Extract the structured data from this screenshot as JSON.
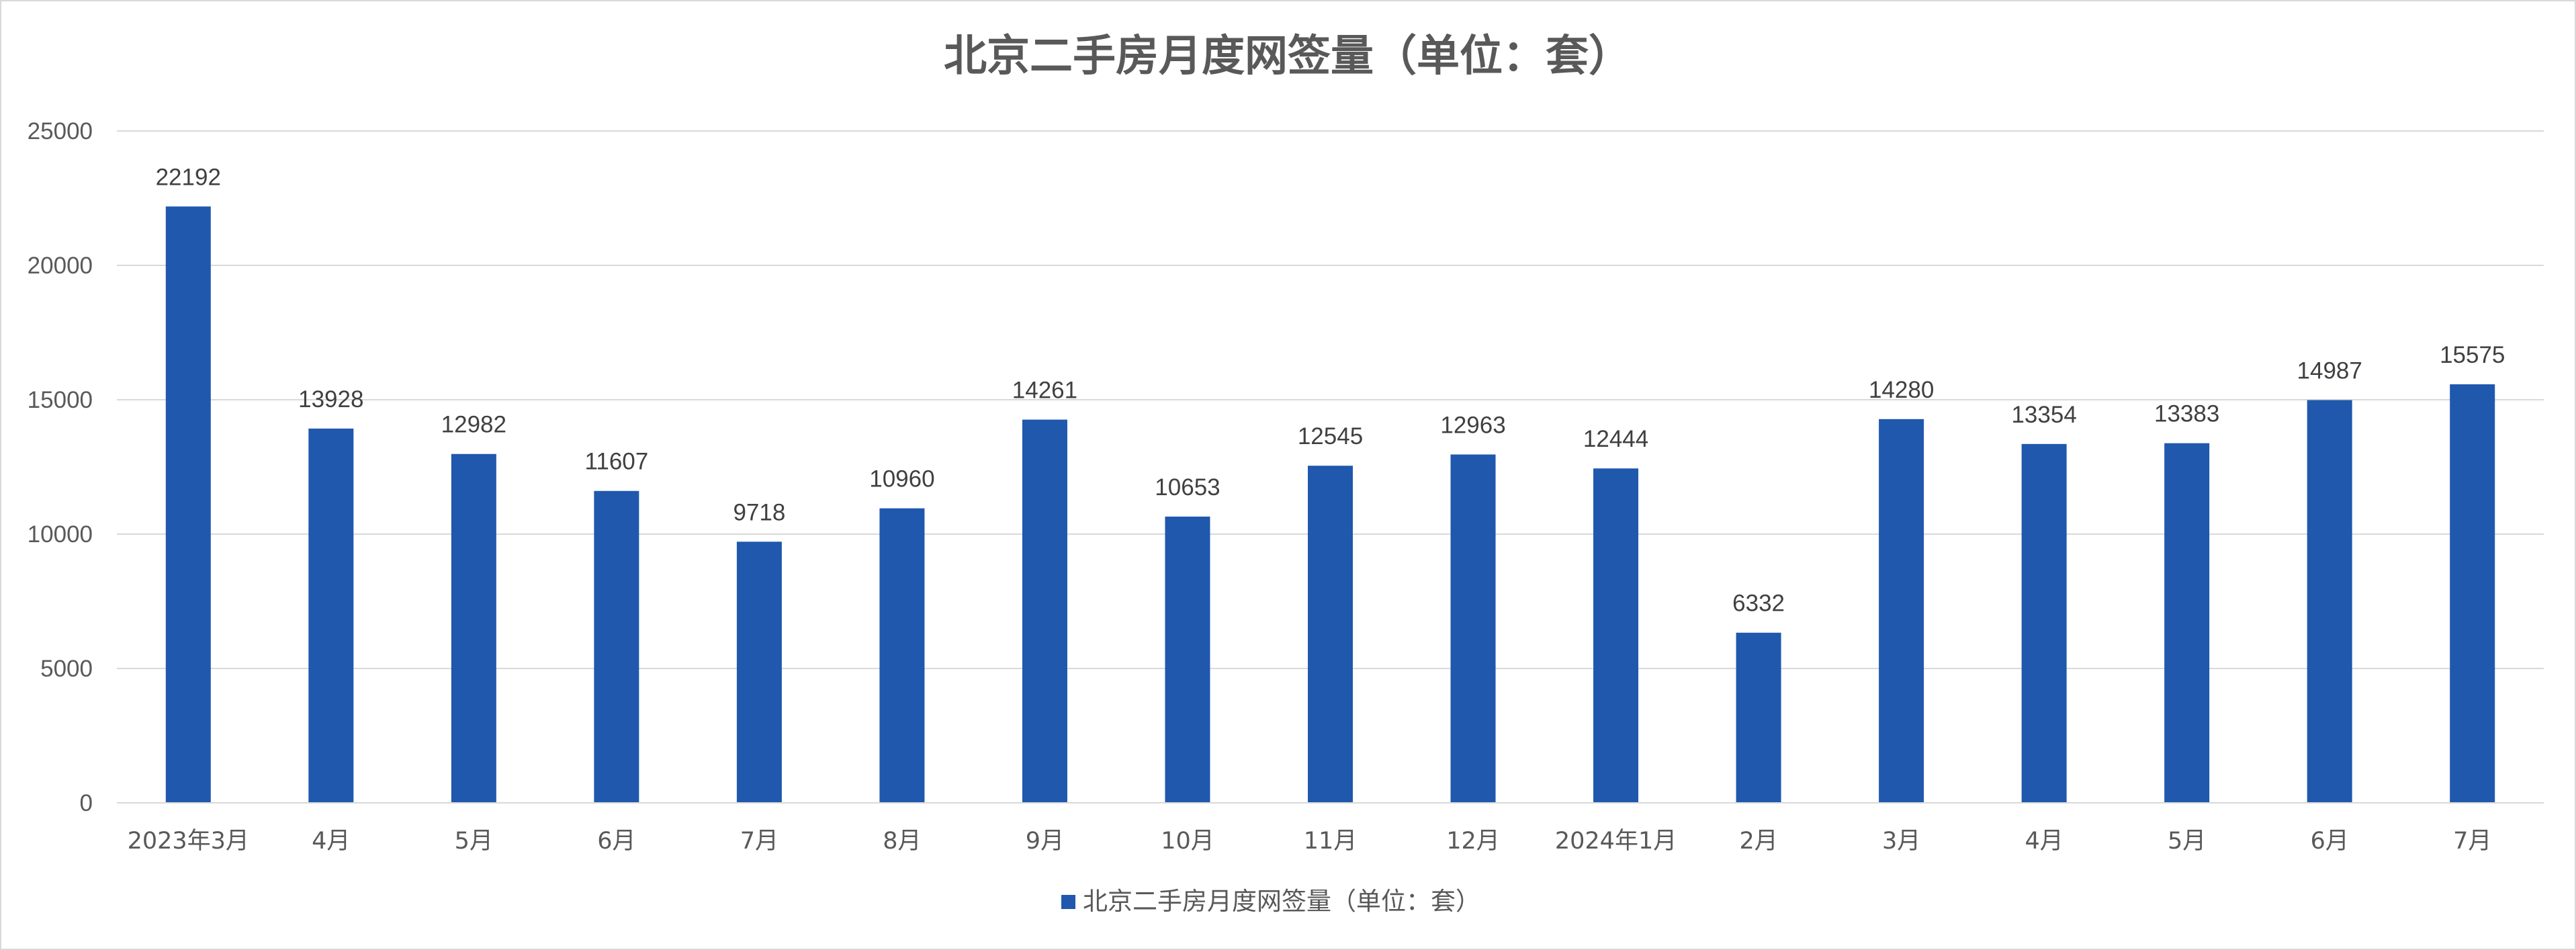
{
  "chart_data": {
    "type": "bar",
    "title": "北京二手房月度网签量（单位：套）",
    "categories": [
      "2023年3月",
      "4月",
      "5月",
      "6月",
      "7月",
      "8月",
      "9月",
      "10月",
      "11月",
      "12月",
      "2024年1月",
      "2月",
      "3月",
      "4月",
      "5月",
      "6月",
      "7月"
    ],
    "series": [
      {
        "name": "北京二手房月度网签量（单位：套）",
        "values": [
          22192,
          13928,
          12982,
          11607,
          9718,
          10960,
          14261,
          10653,
          12545,
          12963,
          12444,
          6332,
          14280,
          13354,
          13383,
          14987,
          15575
        ],
        "color": "#1f58ad"
      }
    ],
    "y_ticks": [
      "0",
      "5000",
      "10000",
      "15000",
      "20000",
      "25000"
    ],
    "ylim": [
      0,
      25000
    ],
    "grid": true,
    "legend_position": "bottom",
    "data_labels": true
  }
}
